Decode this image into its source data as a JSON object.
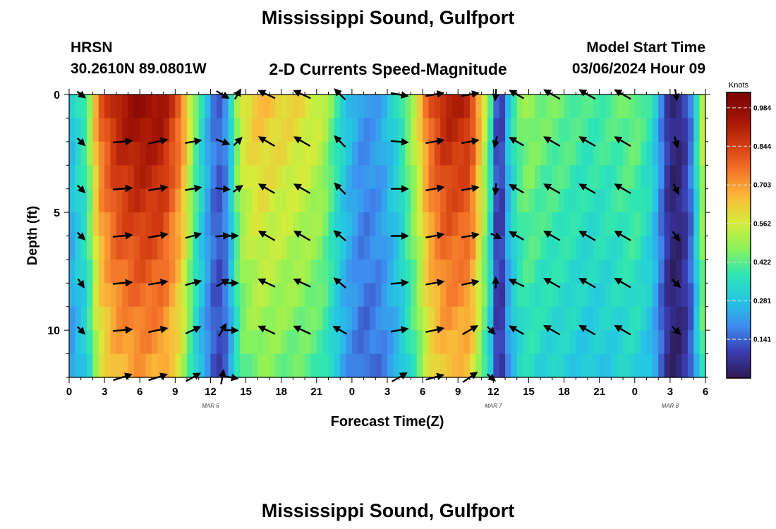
{
  "title": "Mississippi Sound, Gulfport",
  "bottom_title": "Mississippi Sound, Gulfport",
  "header": {
    "station_code": "HRSN",
    "coordinates": "30.2610N  89.0801W",
    "chart_subtitle": "2-D Currents Speed-Magnitude",
    "model_label": "Model Start Time",
    "model_time": "03/06/2024 Hour 09"
  },
  "colors": {
    "ramp": [
      "#2d1b52",
      "#3a3bb0",
      "#3f8cf0",
      "#25c6e4",
      "#2fe6b2",
      "#8cf25a",
      "#d6ec3a",
      "#fbb93a",
      "#f4742a",
      "#d13a10",
      "#a01305",
      "#7a0403"
    ],
    "arrow": "#000000"
  },
  "chart_data": {
    "type": "heatmap",
    "title": "2-D Currents Speed-Magnitude",
    "xlabel": "Forecast Time(Z)",
    "ylabel": "Depth (ft)",
    "colorbar_label": "Knots",
    "colorbar_ticks": [
      "0.984",
      "0.844",
      "0.703",
      "0.562",
      "0.422",
      "0.281",
      "0.141"
    ],
    "colorbar_tick_values": [
      0.984,
      0.844,
      0.703,
      0.562,
      0.422,
      0.281,
      0.141
    ],
    "color_range": [
      0.0,
      1.04
    ],
    "x_range": [
      0,
      54
    ],
    "x_tick_labels": [
      "0",
      "3",
      "6",
      "9",
      "12",
      "15",
      "18",
      "21",
      "0",
      "3",
      "6",
      "9",
      "12",
      "15",
      "18",
      "21",
      "0",
      "3",
      "6"
    ],
    "date_labels": [
      {
        "label": "MAR 6",
        "hour": 12
      },
      {
        "label": "MAR 7",
        "hour": 36
      },
      {
        "label": "MAR 8",
        "hour": 51
      }
    ],
    "y_range": [
      0,
      12
    ],
    "y_ticks": [
      0,
      5,
      10
    ],
    "y_tick_labels": [
      "0",
      "5",
      "10"
    ],
    "speed_profile": {
      "hours": [
        0,
        0.5,
        1.5,
        2.5,
        4,
        6,
        8,
        9.5,
        10.5,
        11.5,
        12.3,
        13,
        13.5,
        14.5,
        16,
        18,
        20,
        21.5,
        22.5,
        23.5,
        25,
        26.5,
        28,
        29.5,
        30.5,
        32,
        34,
        35,
        35.7,
        36.2,
        36.6,
        37.2,
        38,
        39,
        40,
        42,
        44,
        46,
        48,
        49.5,
        50.3,
        51,
        52,
        53,
        53.5,
        54
      ],
      "knots": [
        0.26,
        0.34,
        0.42,
        0.78,
        0.93,
        0.99,
        0.96,
        0.78,
        0.5,
        0.3,
        0.17,
        0.14,
        0.26,
        0.58,
        0.66,
        0.63,
        0.6,
        0.55,
        0.42,
        0.3,
        0.2,
        0.24,
        0.36,
        0.58,
        0.8,
        0.93,
        0.9,
        0.64,
        0.42,
        0.14,
        0.06,
        0.28,
        0.44,
        0.5,
        0.46,
        0.44,
        0.4,
        0.42,
        0.46,
        0.36,
        0.18,
        0.04,
        0.05,
        0.22,
        0.52,
        0.58
      ],
      "depth_attenuation": 0.3
    },
    "arrows": {
      "depths_ft": [
        0,
        2,
        4,
        6,
        8,
        10,
        12
      ],
      "columns": [
        {
          "hour": 1,
          "dir": [
            -38,
            -45,
            -45,
            -45,
            -55,
            -45,
            null
          ],
          "len": 0.5
        },
        {
          "hour": 4.5,
          "dir": [
            null,
            5,
            5,
            5,
            5,
            5,
            18
          ],
          "len": 0.95
        },
        {
          "hour": 7.5,
          "dir": [
            null,
            12,
            10,
            10,
            10,
            12,
            18
          ],
          "len": 0.95
        },
        {
          "hour": 10.5,
          "dir": [
            null,
            10,
            10,
            15,
            15,
            25,
            30
          ],
          "len": 0.8
        },
        {
          "hour": 13,
          "dir": [
            -30,
            -20,
            -5,
            5,
            30,
            60,
            80
          ],
          "len": 0.7
        },
        {
          "hour": 13.7,
          "dir": [
            null,
            null,
            null,
            2,
            0,
            -2,
            -10
          ],
          "len": 0.7
        },
        {
          "hour": 14.3,
          "dir": [
            60,
            45,
            35,
            null,
            null,
            null,
            null
          ],
          "len": 0.55
        },
        {
          "hour": 16.8,
          "dir": [
            155,
            150,
            150,
            150,
            155,
            155,
            null
          ],
          "len": 0.9
        },
        {
          "hour": 19.8,
          "dir": [
            155,
            150,
            150,
            150,
            155,
            155,
            null
          ],
          "len": 0.9
        },
        {
          "hour": 23,
          "dir": [
            135,
            135,
            135,
            140,
            140,
            150,
            null
          ],
          "len": 0.75
        },
        {
          "hour": 28,
          "dir": [
            -10,
            -5,
            0,
            0,
            5,
            10,
            30
          ],
          "len": 0.85
        },
        {
          "hour": 31,
          "dir": [
            10,
            10,
            10,
            10,
            10,
            12,
            15
          ],
          "len": 0.9
        },
        {
          "hour": 34,
          "dir": [
            10,
            10,
            10,
            10,
            12,
            30,
            35
          ],
          "len": 0.85
        },
        {
          "hour": 35.8,
          "dir": [
            null,
            null,
            null,
            null,
            null,
            -45,
            -40
          ],
          "len": 0.5
        },
        {
          "hour": 36.2,
          "dir": [
            -95,
            -105,
            -95,
            -25,
            90,
            null,
            null
          ],
          "len": 0.55
        },
        {
          "hour": 38,
          "dir": [
            150,
            150,
            150,
            150,
            155,
            150,
            null
          ],
          "len": 0.8
        },
        {
          "hour": 41,
          "dir": [
            150,
            150,
            150,
            150,
            150,
            150,
            null
          ],
          "len": 0.9
        },
        {
          "hour": 44,
          "dir": [
            150,
            150,
            150,
            150,
            150,
            150,
            null
          ],
          "len": 0.9
        },
        {
          "hour": 47,
          "dir": [
            150,
            150,
            150,
            150,
            150,
            150,
            null
          ],
          "len": 0.9
        },
        {
          "hour": 51.5,
          "dir": [
            -80,
            -75,
            -65,
            -55,
            -45,
            -45,
            null
          ],
          "len": 0.55
        }
      ]
    }
  }
}
